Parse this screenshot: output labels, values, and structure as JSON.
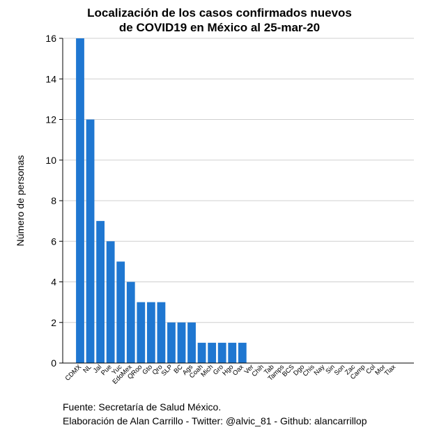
{
  "chart_data": {
    "type": "bar",
    "title_lines": [
      "Localización de los casos confirmados nuevos",
      "de COVID19 en México al 25-mar-20"
    ],
    "xlabel": "",
    "ylabel": "Número de personas",
    "ylim": [
      0,
      16
    ],
    "yticks": [
      0,
      2,
      4,
      6,
      8,
      10,
      12,
      14,
      16
    ],
    "grid": true,
    "bar_color": "#1f77d1",
    "categories": [
      "CDMX",
      "NL",
      "Jal",
      "Pue",
      "Yuc",
      "EdoMex",
      "QRoo",
      "Gto",
      "Qro",
      "SLP",
      "BC",
      "Ags",
      "Coah",
      "Mich",
      "Gro",
      "Hgo",
      "Oax",
      "Ver",
      "Chih",
      "Tab",
      "Tamps",
      "BCS",
      "Dgo",
      "Chis",
      "Nay",
      "Sin",
      "Son",
      "Zac",
      "Camp",
      "Col",
      "Mor",
      "Tlax"
    ],
    "values": [
      16,
      12,
      7,
      6,
      5,
      4,
      3,
      3,
      3,
      2,
      2,
      2,
      1,
      1,
      1,
      1,
      1,
      0,
      0,
      0,
      0,
      0,
      0,
      0,
      0,
      0,
      0,
      0,
      0,
      0,
      0,
      0
    ]
  },
  "caption": {
    "source": "Fuente: Secretaría de Salud México.",
    "credit": "Elaboración de Alan Carrillo - Twitter: @alvic_81 - Github: alancarrillop"
  }
}
